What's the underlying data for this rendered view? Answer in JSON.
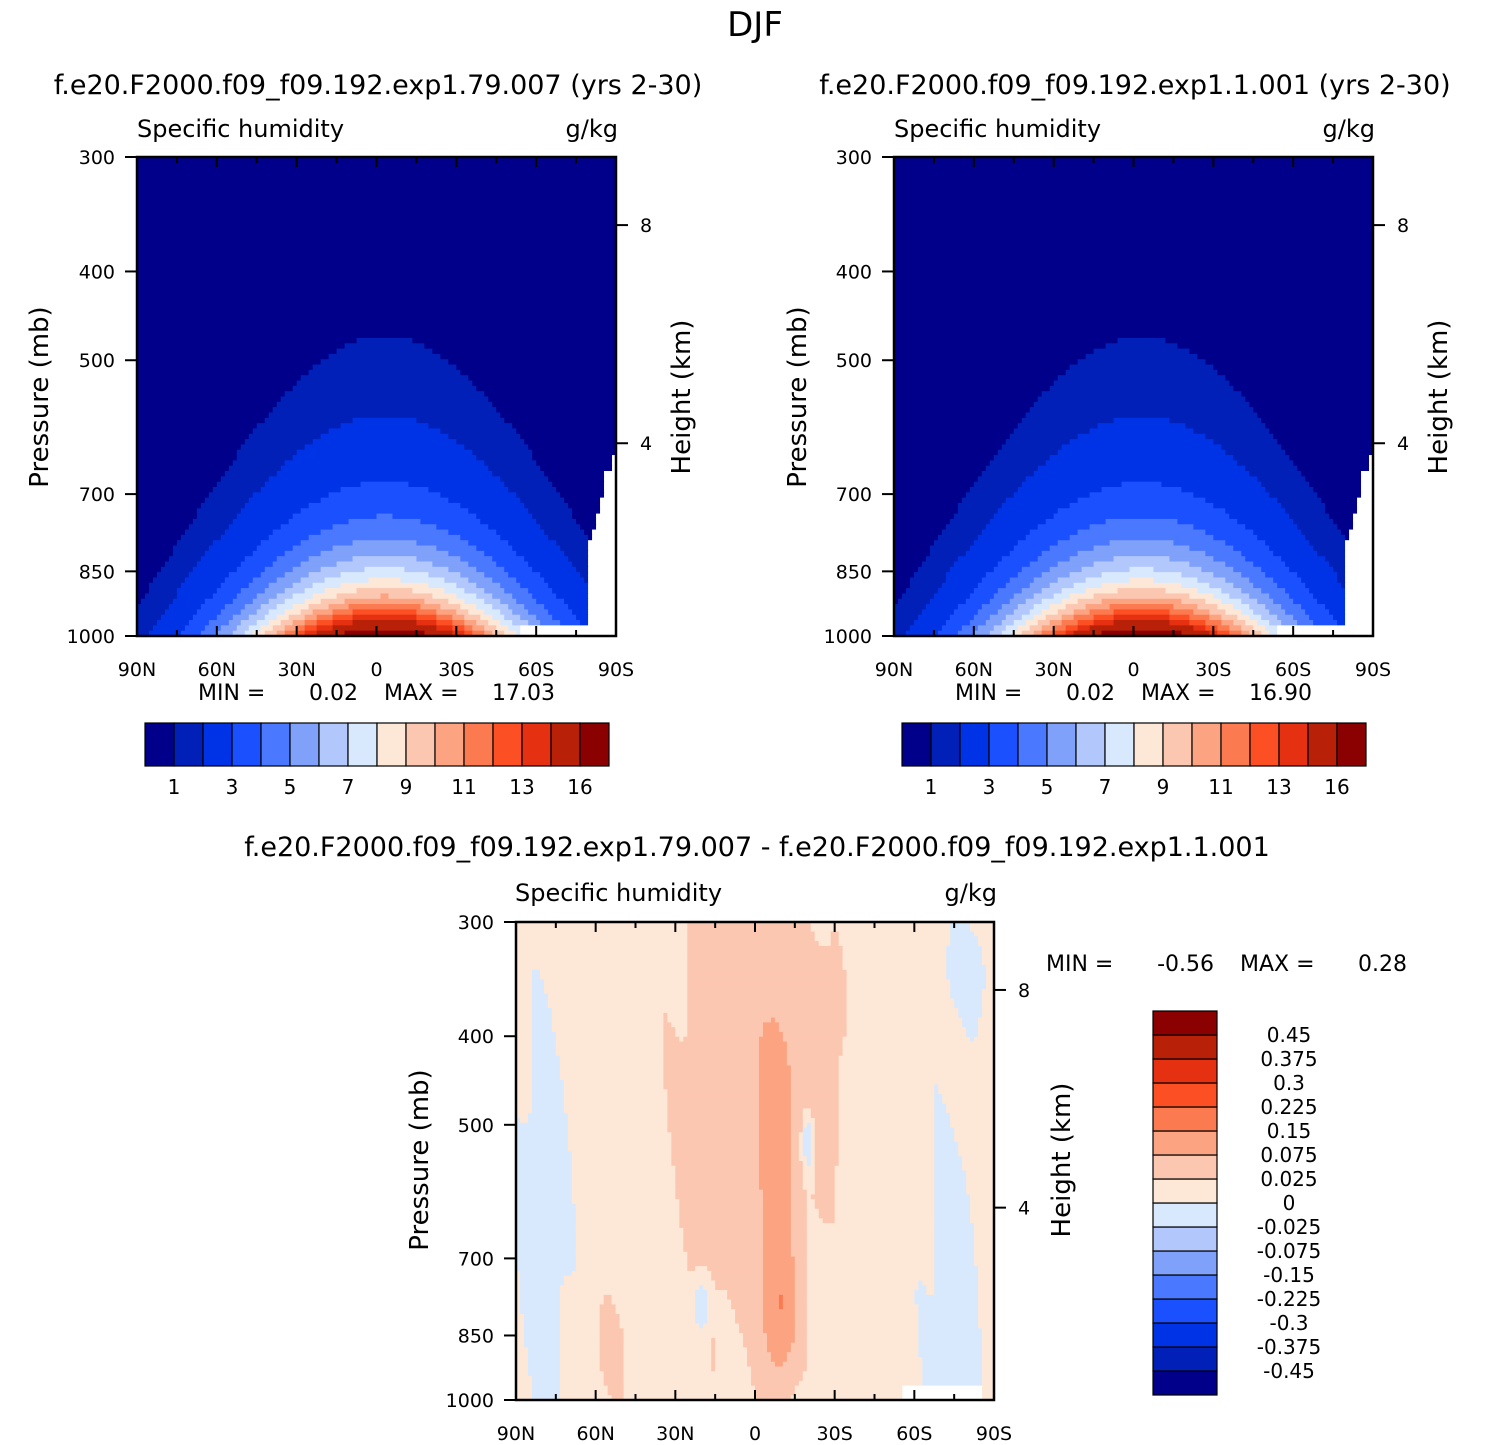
{
  "title": "DJF",
  "colors": {
    "abs_levels": [
      "#00008b",
      "#0020b8",
      "#0032e6",
      "#1a50ff",
      "#4a78ff",
      "#7fa1fa",
      "#b2c8fc",
      "#d8e8fd",
      "#fde8d8",
      "#fcc7b0",
      "#fca482",
      "#fc7a50",
      "#fc5024",
      "#e63012",
      "#b82008",
      "#8b0000"
    ],
    "diff_levels": [
      "#00008b",
      "#0020b8",
      "#0032e6",
      "#1a50ff",
      "#4a78ff",
      "#7fa1fa",
      "#b2c8fc",
      "#d8e8fd",
      "#fde8d8",
      "#fcc7b0",
      "#fca482",
      "#fc7a50",
      "#fc5024",
      "#e63012",
      "#b82008",
      "#8b0000"
    ]
  },
  "chart_data": [
    {
      "type": "contour",
      "id": "panel_a",
      "header": "f.e20.F2000.f09_f09.192.exp1.79.007 (yrs 2-30)",
      "left_title": "Specific humidity",
      "units": "g/kg",
      "ylabel": "Pressure (mb)",
      "y2label": "Height (km)",
      "x_ticks": [
        "90N",
        "60N",
        "30N",
        "0",
        "30S",
        "60S",
        "90S"
      ],
      "y_ticks": [
        300,
        400,
        500,
        700,
        850,
        1000
      ],
      "y_range": [
        300,
        1000
      ],
      "y2_ticks": [
        8,
        4
      ],
      "min_label": "MIN =",
      "min_value": "0.02",
      "max_label": "MAX =",
      "max_value": "17.03",
      "colorbar_labels": [
        "1",
        "3",
        "5",
        "7",
        "9",
        "11",
        "13",
        "16"
      ],
      "field": {
        "lat_center": -3,
        "peak_value": 17.03,
        "surface_half_width_deg": 95,
        "scale_height_mb": 150
      }
    },
    {
      "type": "contour",
      "id": "panel_b",
      "header": "f.e20.F2000.f09_f09.192.exp1.1.001 (yrs 2-30)",
      "left_title": "Specific humidity",
      "units": "g/kg",
      "ylabel": "Pressure (mb)",
      "y2label": "Height (km)",
      "x_ticks": [
        "90N",
        "60N",
        "30N",
        "0",
        "30S",
        "60S",
        "90S"
      ],
      "y_ticks": [
        300,
        400,
        500,
        700,
        850,
        1000
      ],
      "y_range": [
        300,
        1000
      ],
      "y2_ticks": [
        8,
        4
      ],
      "min_label": "MIN =",
      "min_value": "0.02",
      "max_label": "MAX =",
      "max_value": "16.90",
      "colorbar_labels": [
        "1",
        "3",
        "5",
        "7",
        "9",
        "11",
        "13",
        "16"
      ],
      "field": {
        "lat_center": -3,
        "peak_value": 16.9,
        "surface_half_width_deg": 95,
        "scale_height_mb": 150
      }
    },
    {
      "type": "contour",
      "id": "panel_diff",
      "header": "f.e20.F2000.f09_f09.192.exp1.79.007 - f.e20.F2000.f09_f09.192.exp1.1.001",
      "left_title": "Specific humidity",
      "units": "g/kg",
      "ylabel": "Pressure (mb)",
      "y2label": "Height (km)",
      "x_ticks": [
        "90N",
        "60N",
        "30N",
        "0",
        "30S",
        "60S",
        "90S"
      ],
      "y_ticks": [
        300,
        400,
        500,
        700,
        850,
        1000
      ],
      "y_range": [
        300,
        1000
      ],
      "y2_ticks": [
        8,
        4
      ],
      "min_label": "MIN =",
      "min_value": "-0.56",
      "max_label": "MAX =",
      "max_value": "0.28",
      "colorbar_labels": [
        "0.45",
        "0.375",
        "0.3",
        "0.225",
        "0.15",
        "0.075",
        "0.025",
        "0",
        "-0.025",
        "-0.075",
        "-0.15",
        "-0.225",
        "-0.3",
        "-0.375",
        "-0.45"
      ]
    }
  ]
}
